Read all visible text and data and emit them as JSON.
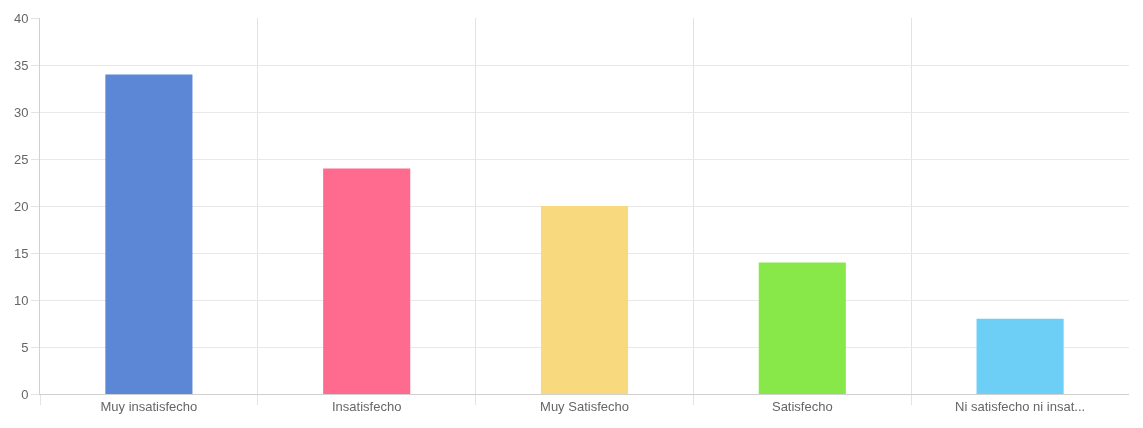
{
  "chart_data": {
    "type": "bar",
    "categories": [
      "Muy insatisfecho",
      "Insatisfecho",
      "Muy Satisfecho",
      "Satisfecho",
      "Ni satisfecho ni insat..."
    ],
    "values": [
      34,
      24,
      20,
      14,
      8
    ],
    "colors": [
      "#5b87d6",
      "#ff6b8f",
      "#f8d97e",
      "#88e84a",
      "#6dcff6"
    ],
    "ylim": [
      0,
      40
    ],
    "yticks": [
      0,
      5,
      10,
      15,
      20,
      25,
      30,
      35,
      40
    ],
    "grid": true
  }
}
